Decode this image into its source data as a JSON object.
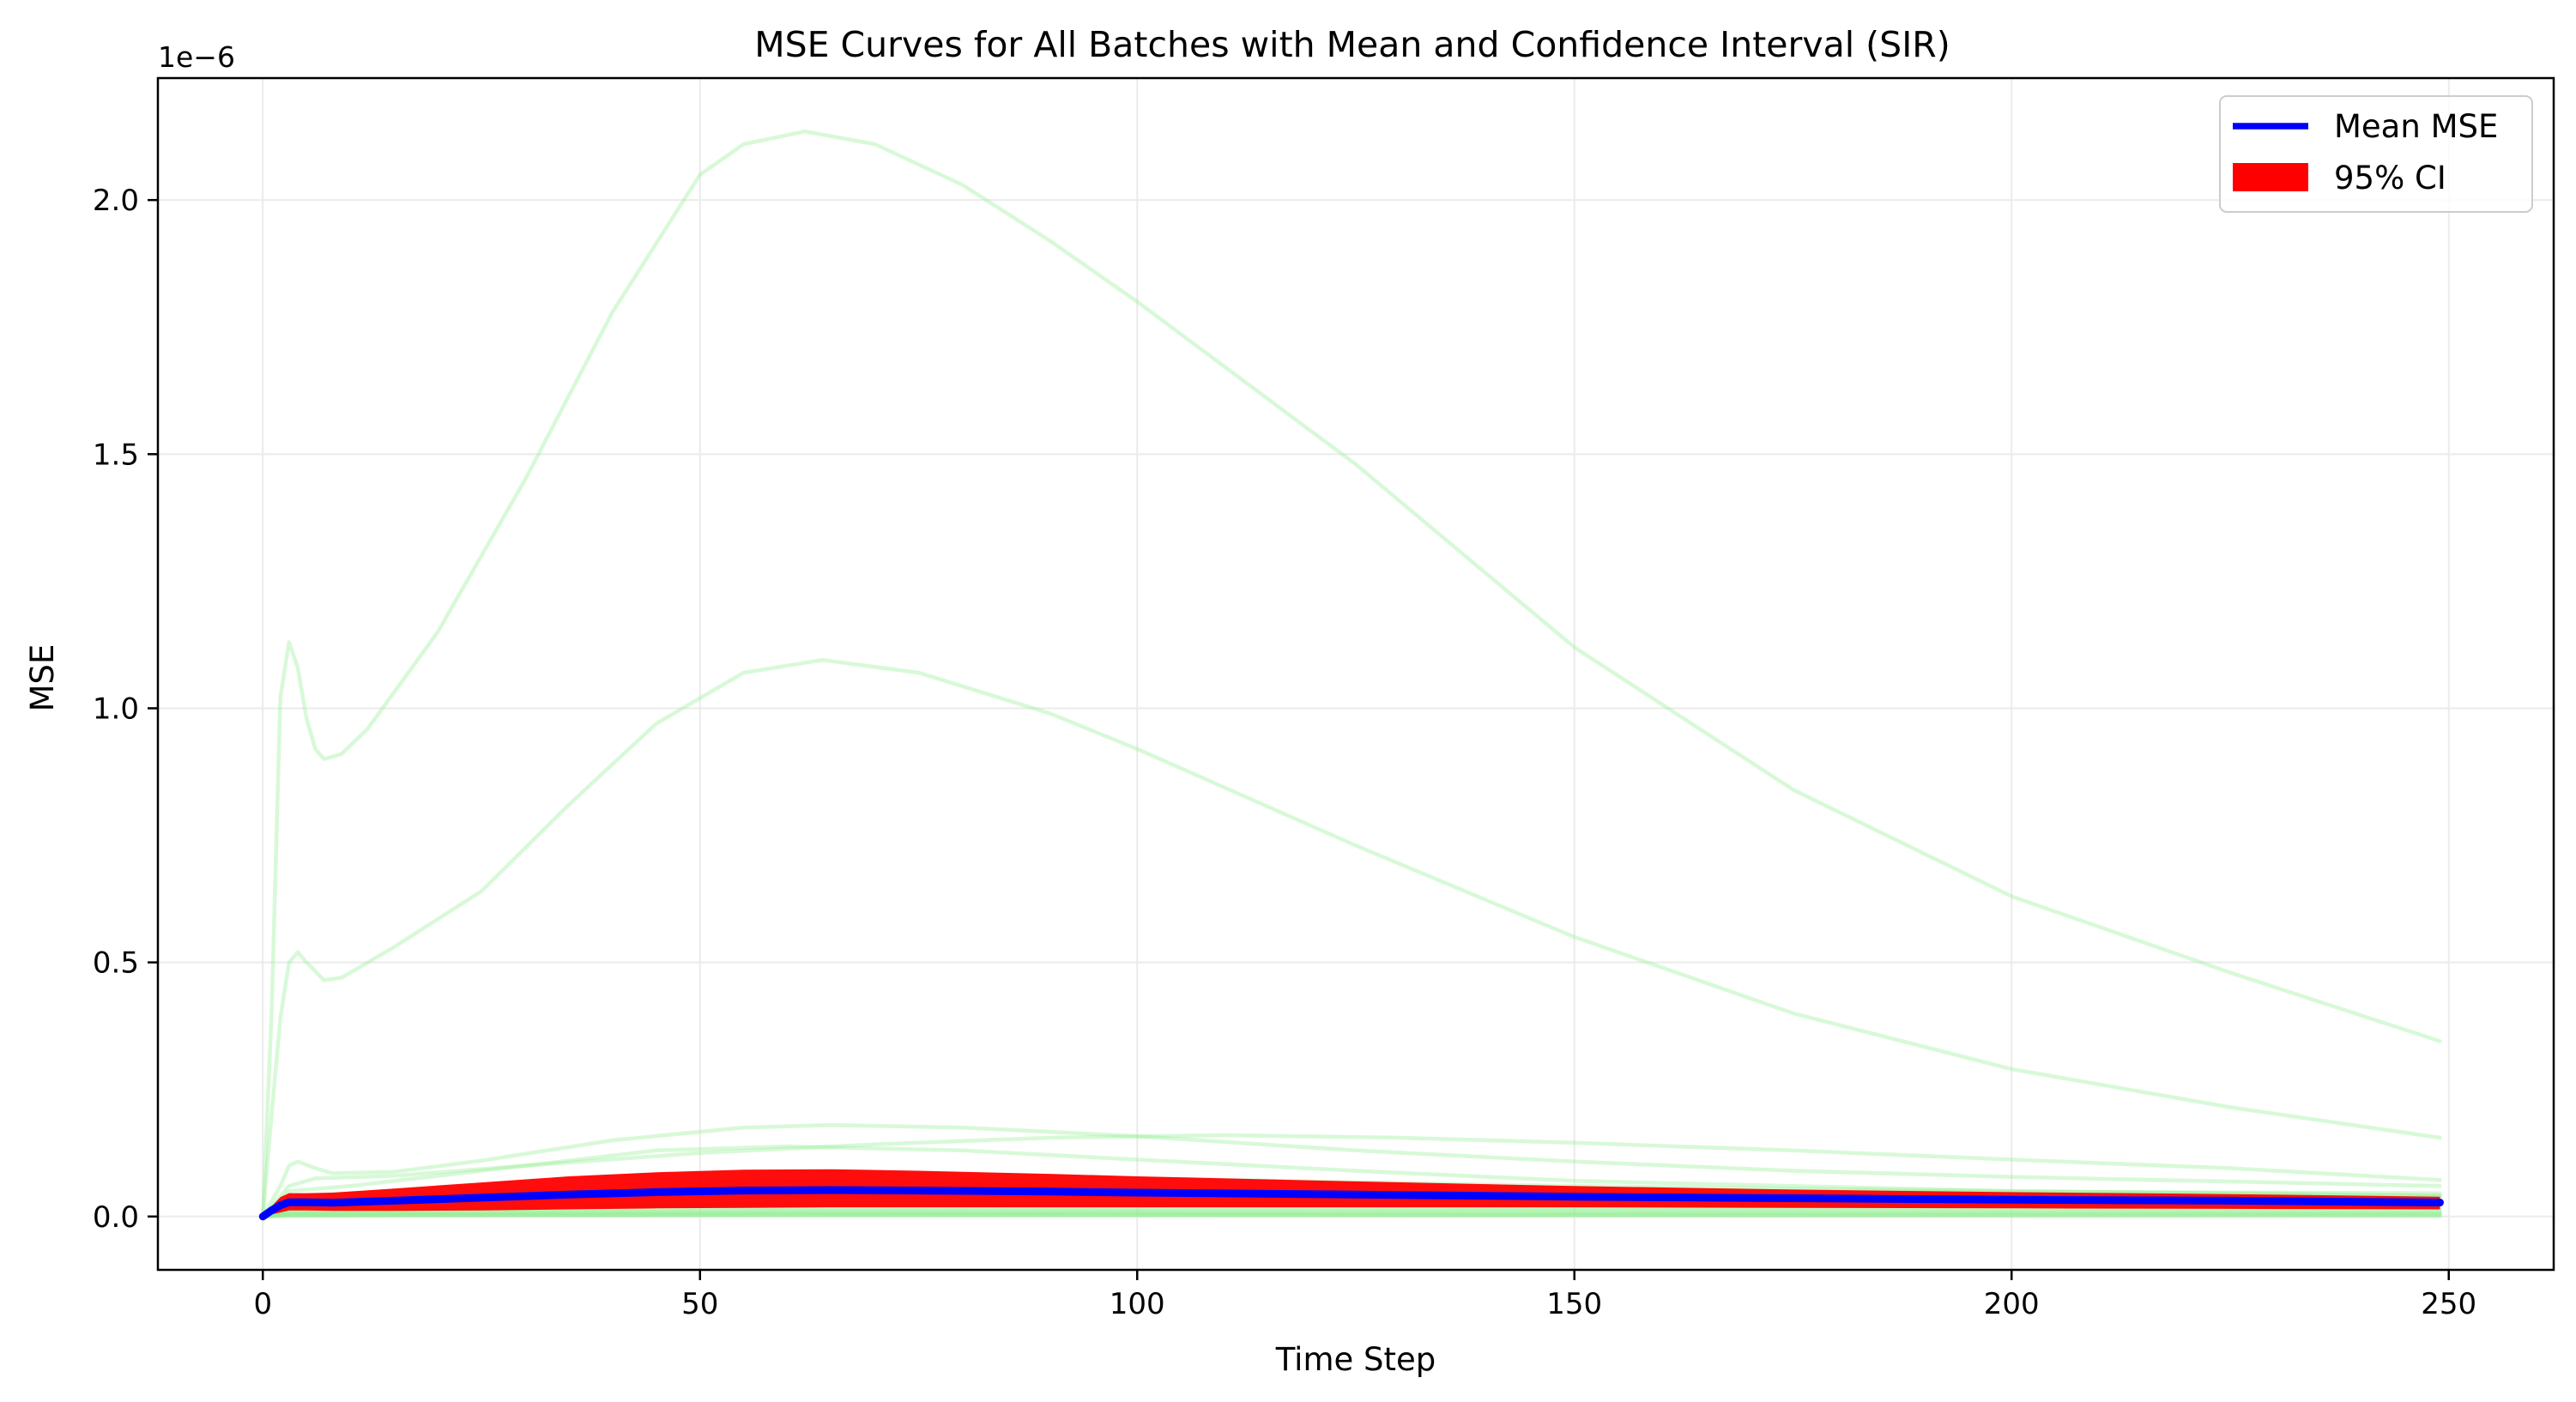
{
  "chart_data": {
    "type": "line",
    "title": "MSE Curves for All Batches with Mean and Confidence Interval (SIR)",
    "xlabel": "Time Step",
    "ylabel": "MSE",
    "y_scale_label": "1e−6",
    "xlim": [
      -12,
      262
    ],
    "ylim": [
      -1.05e-07,
      2.24e-06
    ],
    "x_ticks": [
      0,
      50,
      100,
      150,
      200,
      250
    ],
    "x_tick_labels": [
      "0",
      "50",
      "100",
      "150",
      "200",
      "250"
    ],
    "y_ticks": [
      0,
      5e-07,
      1e-06,
      1.5e-06,
      2e-06
    ],
    "y_tick_labels": [
      "0.0",
      "0.5",
      "1.0",
      "1.5",
      "2.0"
    ],
    "grid": true,
    "legend_position": "top-right",
    "legend": [
      {
        "label": "Mean MSE",
        "kind": "line",
        "color": "#0000ff"
      },
      {
        "label": "95% CI",
        "kind": "patch",
        "color": "#ff0000"
      }
    ],
    "colors": {
      "batch": "#90ee90",
      "mean": "#0000ff",
      "ci": "#ff0000",
      "grid": "#ebebeb",
      "axis": "#000000"
    },
    "batch_series": [
      {
        "points": [
          [
            0,
            0
          ],
          [
            1,
            4e-07
          ],
          [
            2,
            1.02e-06
          ],
          [
            3,
            1.13e-06
          ],
          [
            4,
            1.08e-06
          ],
          [
            5,
            9.8e-07
          ],
          [
            6,
            9.2e-07
          ],
          [
            7,
            9e-07
          ],
          [
            9,
            9.1e-07
          ],
          [
            12,
            9.6e-07
          ],
          [
            20,
            1.15e-06
          ],
          [
            30,
            1.45e-06
          ],
          [
            40,
            1.78e-06
          ],
          [
            50,
            2.05e-06
          ],
          [
            55,
            2.11e-06
          ],
          [
            62,
            2.135e-06
          ],
          [
            70,
            2.11e-06
          ],
          [
            80,
            2.03e-06
          ],
          [
            90,
            1.92e-06
          ],
          [
            100,
            1.8e-06
          ],
          [
            125,
            1.48e-06
          ],
          [
            150,
            1.12e-06
          ],
          [
            175,
            8.4e-07
          ],
          [
            200,
            6.3e-07
          ],
          [
            225,
            4.8e-07
          ],
          [
            249,
            3.45e-07
          ]
        ]
      },
      {
        "points": [
          [
            0,
            0
          ],
          [
            1,
            2e-07
          ],
          [
            2,
            3.9e-07
          ],
          [
            3,
            5e-07
          ],
          [
            4,
            5.2e-07
          ],
          [
            5,
            5e-07
          ],
          [
            7,
            4.65e-07
          ],
          [
            9,
            4.7e-07
          ],
          [
            15,
            5.3e-07
          ],
          [
            25,
            6.4e-07
          ],
          [
            35,
            8.1e-07
          ],
          [
            45,
            9.7e-07
          ],
          [
            55,
            1.07e-06
          ],
          [
            64,
            1.095e-06
          ],
          [
            75,
            1.07e-06
          ],
          [
            90,
            9.9e-07
          ],
          [
            100,
            9.2e-07
          ],
          [
            125,
            7.3e-07
          ],
          [
            150,
            5.5e-07
          ],
          [
            175,
            4e-07
          ],
          [
            200,
            2.9e-07
          ],
          [
            225,
            2.15e-07
          ],
          [
            249,
            1.55e-07
          ]
        ]
      },
      {
        "points": [
          [
            0,
            0
          ],
          [
            2,
            6e-08
          ],
          [
            3,
            1e-07
          ],
          [
            4,
            1.08e-07
          ],
          [
            6,
            9.5e-08
          ],
          [
            8,
            8.5e-08
          ],
          [
            15,
            8.8e-08
          ],
          [
            25,
            1.1e-07
          ],
          [
            40,
            1.5e-07
          ],
          [
            55,
            1.75e-07
          ],
          [
            65,
            1.8e-07
          ],
          [
            80,
            1.75e-07
          ],
          [
            100,
            1.58e-07
          ],
          [
            125,
            1.3e-07
          ],
          [
            150,
            1.08e-07
          ],
          [
            175,
            9e-08
          ],
          [
            200,
            7.8e-08
          ],
          [
            249,
            6e-08
          ]
        ]
      },
      {
        "points": [
          [
            0,
            0
          ],
          [
            3,
            6e-08
          ],
          [
            6,
            7.5e-08
          ],
          [
            15,
            8e-08
          ],
          [
            30,
            1e-07
          ],
          [
            50,
            1.25e-07
          ],
          [
            70,
            1.42e-07
          ],
          [
            90,
            1.55e-07
          ],
          [
            110,
            1.6e-07
          ],
          [
            130,
            1.55e-07
          ],
          [
            150,
            1.45e-07
          ],
          [
            175,
            1.3e-07
          ],
          [
            200,
            1.12e-07
          ],
          [
            225,
            9.5e-08
          ],
          [
            249,
            7.2e-08
          ]
        ]
      },
      {
        "points": [
          [
            0,
            0
          ],
          [
            3,
            5e-08
          ],
          [
            10,
            6e-08
          ],
          [
            25,
            9e-08
          ],
          [
            45,
            1.3e-07
          ],
          [
            60,
            1.38e-07
          ],
          [
            80,
            1.3e-07
          ],
          [
            100,
            1.12e-07
          ],
          [
            125,
            9e-08
          ],
          [
            150,
            7e-08
          ],
          [
            200,
            5e-08
          ],
          [
            249,
            4e-08
          ]
        ]
      },
      {
        "points": [
          [
            0,
            0
          ],
          [
            3,
            4e-08
          ],
          [
            15,
            5e-08
          ],
          [
            40,
            7.5e-08
          ],
          [
            65,
            8.5e-08
          ],
          [
            100,
            7.5e-08
          ],
          [
            150,
            6e-08
          ],
          [
            200,
            5e-08
          ],
          [
            249,
            4.2e-08
          ]
        ]
      },
      {
        "points": [
          [
            0,
            0
          ],
          [
            3,
            3e-08
          ],
          [
            20,
            4e-08
          ],
          [
            50,
            5.8e-08
          ],
          [
            80,
            6.2e-08
          ],
          [
            120,
            5.8e-08
          ],
          [
            180,
            5e-08
          ],
          [
            249,
            4.6e-08
          ]
        ]
      },
      {
        "points": [
          [
            0,
            0
          ],
          [
            3,
            2.5e-08
          ],
          [
            30,
            3.2e-08
          ],
          [
            70,
            4e-08
          ],
          [
            130,
            4.2e-08
          ],
          [
            200,
            4e-08
          ],
          [
            249,
            3.8e-08
          ]
        ]
      },
      {
        "points": [
          [
            0,
            0
          ],
          [
            3,
            2e-08
          ],
          [
            30,
            2.5e-08
          ],
          [
            70,
            3e-08
          ],
          [
            130,
            3.2e-08
          ],
          [
            249,
            3e-08
          ]
        ]
      },
      {
        "points": [
          [
            0,
            0
          ],
          [
            3,
            1.5e-08
          ],
          [
            40,
            2e-08
          ],
          [
            100,
            2.5e-08
          ],
          [
            249,
            2.4e-08
          ]
        ]
      },
      {
        "points": [
          [
            0,
            0
          ],
          [
            3,
            1.2e-08
          ],
          [
            50,
            1.6e-08
          ],
          [
            120,
            1.9e-08
          ],
          [
            249,
            1.9e-08
          ]
        ]
      },
      {
        "points": [
          [
            0,
            0
          ],
          [
            3,
            1e-08
          ],
          [
            60,
            1.3e-08
          ],
          [
            150,
            1.5e-08
          ],
          [
            249,
            1.5e-08
          ]
        ]
      },
      {
        "points": [
          [
            0,
            0
          ],
          [
            3,
            8e-09
          ],
          [
            60,
            1e-08
          ],
          [
            150,
            1.2e-08
          ],
          [
            249,
            1.1e-08
          ]
        ]
      },
      {
        "points": [
          [
            0,
            0
          ],
          [
            3,
            6e-09
          ],
          [
            60,
            8e-09
          ],
          [
            150,
            9e-09
          ],
          [
            249,
            8e-09
          ]
        ]
      },
      {
        "points": [
          [
            0,
            0
          ],
          [
            3,
            4e-09
          ],
          [
            60,
            6e-09
          ],
          [
            249,
            6e-09
          ]
        ]
      },
      {
        "points": [
          [
            0,
            0
          ],
          [
            3,
            3e-09
          ],
          [
            60,
            4e-09
          ],
          [
            249,
            4e-09
          ]
        ]
      },
      {
        "points": [
          [
            0,
            0
          ],
          [
            3,
            2e-09
          ],
          [
            60,
            3e-09
          ],
          [
            249,
            2e-09
          ]
        ]
      },
      {
        "points": [
          [
            0,
            0
          ],
          [
            3,
            1e-09
          ],
          [
            60,
            2e-09
          ],
          [
            249,
            1e-09
          ]
        ]
      }
    ],
    "mean_series": {
      "name": "Mean MSE",
      "points": [
        [
          0,
          0
        ],
        [
          1,
          1.2e-08
        ],
        [
          2,
          2.2e-08
        ],
        [
          3,
          2.8e-08
        ],
        [
          5,
          2.8e-08
        ],
        [
          8,
          2.7e-08
        ],
        [
          15,
          3.1e-08
        ],
        [
          25,
          3.7e-08
        ],
        [
          35,
          4.3e-08
        ],
        [
          45,
          4.8e-08
        ],
        [
          55,
          5.1e-08
        ],
        [
          65,
          5.2e-08
        ],
        [
          75,
          5.1e-08
        ],
        [
          90,
          4.9e-08
        ],
        [
          100,
          4.7e-08
        ],
        [
          125,
          4.3e-08
        ],
        [
          150,
          3.9e-08
        ],
        [
          175,
          3.6e-08
        ],
        [
          200,
          3.3e-08
        ],
        [
          225,
          3.1e-08
        ],
        [
          249,
          2.75e-08
        ]
      ]
    },
    "ci_band": {
      "name": "95% CI",
      "upper": [
        [
          0,
          0
        ],
        [
          1,
          2e-08
        ],
        [
          2,
          3.8e-08
        ],
        [
          3,
          4.6e-08
        ],
        [
          5,
          4.6e-08
        ],
        [
          8,
          4.7e-08
        ],
        [
          15,
          5.5e-08
        ],
        [
          25,
          6.7e-08
        ],
        [
          35,
          7.9e-08
        ],
        [
          45,
          8.7e-08
        ],
        [
          55,
          9.2e-08
        ],
        [
          65,
          9.3e-08
        ],
        [
          75,
          9e-08
        ],
        [
          90,
          8.4e-08
        ],
        [
          100,
          7.9e-08
        ],
        [
          125,
          6.9e-08
        ],
        [
          150,
          6e-08
        ],
        [
          175,
          5.3e-08
        ],
        [
          200,
          4.8e-08
        ],
        [
          225,
          4.4e-08
        ],
        [
          249,
          3.9e-08
        ]
      ],
      "lower": [
        [
          0,
          0
        ],
        [
          1,
          4e-09
        ],
        [
          2,
          8e-09
        ],
        [
          3,
          1.2e-08
        ],
        [
          5,
          1.2e-08
        ],
        [
          8,
          1.1e-08
        ],
        [
          15,
          1.1e-08
        ],
        [
          25,
          1.2e-08
        ],
        [
          35,
          1.4e-08
        ],
        [
          45,
          1.6e-08
        ],
        [
          55,
          1.7e-08
        ],
        [
          65,
          1.8e-08
        ],
        [
          75,
          1.8e-08
        ],
        [
          90,
          1.8e-08
        ],
        [
          100,
          1.8e-08
        ],
        [
          125,
          1.8e-08
        ],
        [
          150,
          1.8e-08
        ],
        [
          175,
          1.7e-08
        ],
        [
          200,
          1.6e-08
        ],
        [
          225,
          1.5e-08
        ],
        [
          249,
          1.4e-08
        ]
      ]
    }
  }
}
